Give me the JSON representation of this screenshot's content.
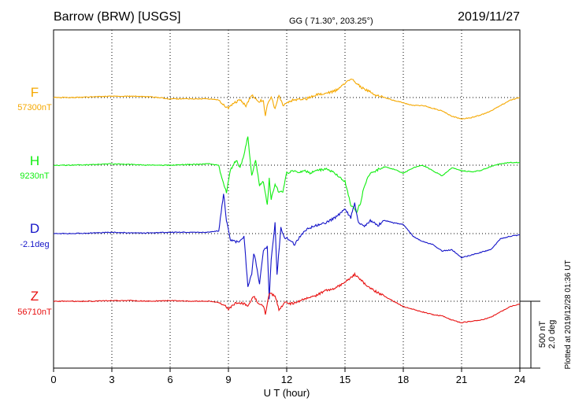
{
  "header": {
    "station": "Barrow (BRW)  [USGS]",
    "coords": "GG ( 71.30°, 203.25°)",
    "date": "2019/11/27"
  },
  "footer": {
    "plotted": "Plotted at 2019/12/28 01:36 UT"
  },
  "scale": {
    "nt": "500 nT",
    "deg": "2.0 deg"
  },
  "chart_data": {
    "type": "line",
    "title": "Barrow (BRW)  [USGS]",
    "xlabel": "U T (hour)",
    "ylabel": "",
    "xlim": [
      0,
      24
    ],
    "x_ticks": [
      "0",
      "3",
      "6",
      "9",
      "12",
      "15",
      "18",
      "21",
      "24"
    ],
    "grid": true,
    "series": [
      {
        "name": "F",
        "baseline": "57300nT",
        "color": "#f5a800",
        "x": [
          0,
          1,
          2,
          3,
          4,
          5,
          6,
          7,
          8,
          8.5,
          8.8,
          9,
          9.3,
          9.6,
          9.9,
          10.2,
          10.5,
          10.8,
          10.9,
          11,
          11.2,
          11.4,
          11.6,
          11.8,
          12,
          12.3,
          12.7,
          13,
          13.5,
          14,
          14.5,
          15,
          15.3,
          15.5,
          15.8,
          16.2,
          16.5,
          17,
          17.5,
          18,
          18.5,
          19,
          19.5,
          20,
          20.5,
          21,
          21.5,
          22,
          22.5,
          23,
          23.5,
          24
        ],
        "y": [
          0,
          0,
          5,
          10,
          10,
          5,
          -10,
          -10,
          -10,
          -20,
          -60,
          -80,
          -40,
          -20,
          -60,
          20,
          -30,
          -20,
          -140,
          -60,
          10,
          -90,
          20,
          -60,
          -40,
          -20,
          -10,
          -10,
          20,
          30,
          50,
          110,
          140,
          120,
          80,
          50,
          20,
          0,
          -20,
          -40,
          -60,
          -60,
          -80,
          -100,
          -140,
          -160,
          -150,
          -130,
          -100,
          -60,
          -20,
          0
        ]
      },
      {
        "name": "H",
        "baseline": "9230nT",
        "color": "#11ee11",
        "x": [
          0,
          1,
          2,
          3,
          4,
          5,
          6,
          7,
          8,
          8.5,
          8.7,
          8.9,
          9.1,
          9.4,
          9.6,
          9.8,
          10,
          10.2,
          10.4,
          10.6,
          10.8,
          11,
          11.1,
          11.2,
          11.4,
          11.6,
          11.8,
          12,
          12.3,
          12.6,
          12.9,
          13.2,
          13.5,
          14,
          14.5,
          15,
          15.3,
          15.6,
          15.8,
          16,
          16.3,
          16.6,
          17,
          17.5,
          18,
          18.5,
          19,
          19.5,
          20,
          20.5,
          21,
          21.5,
          22,
          22.5,
          23,
          23.5,
          24
        ],
        "y": [
          0,
          0,
          5,
          10,
          5,
          0,
          0,
          5,
          10,
          0,
          -120,
          -200,
          -40,
          40,
          -20,
          80,
          220,
          -80,
          40,
          -150,
          -120,
          -300,
          -100,
          -250,
          -150,
          -200,
          -200,
          -60,
          -40,
          -50,
          -40,
          -60,
          -40,
          -30,
          -60,
          -120,
          -300,
          -350,
          -280,
          -150,
          -60,
          -40,
          -10,
          -30,
          -60,
          -20,
          0,
          -40,
          -80,
          -20,
          -40,
          -50,
          -40,
          -10,
          10,
          20,
          20
        ]
      },
      {
        "name": "D",
        "baseline": "-2.1deg",
        "color": "#1414c8",
        "x": [
          0,
          1,
          2,
          3,
          4,
          5,
          6,
          7,
          8,
          8.5,
          8.75,
          8.9,
          9.1,
          9.3,
          9.6,
          9.8,
          10,
          10.2,
          10.3,
          10.4,
          10.6,
          10.8,
          11,
          11.1,
          11.2,
          11.4,
          11.5,
          11.7,
          11.9,
          12.1,
          12.4,
          12.7,
          13,
          13.5,
          14,
          14.5,
          15,
          15.3,
          15.5,
          15.7,
          16,
          16.3,
          16.7,
          17,
          17.5,
          18,
          18.5,
          19,
          19.5,
          20,
          20.5,
          21,
          21.5,
          22,
          22.5,
          23,
          23.5,
          24
        ],
        "y": [
          0,
          0,
          5,
          10,
          5,
          5,
          10,
          10,
          10,
          20,
          300,
          100,
          -50,
          -60,
          -60,
          -20,
          -400,
          -300,
          -150,
          -200,
          -380,
          -120,
          -100,
          -500,
          -200,
          80,
          -300,
          40,
          -30,
          -40,
          -80,
          -20,
          30,
          60,
          80,
          120,
          180,
          120,
          230,
          80,
          50,
          100,
          60,
          100,
          80,
          70,
          -20,
          -60,
          -80,
          -130,
          -120,
          -180,
          -160,
          -140,
          -120,
          -40,
          -20,
          -10
        ]
      },
      {
        "name": "Z",
        "baseline": "56710nT",
        "color": "#e81010",
        "x": [
          0,
          1,
          2,
          3,
          4,
          5,
          6,
          7,
          8,
          8.5,
          8.8,
          9,
          9.3,
          9.6,
          10,
          10.3,
          10.5,
          10.8,
          10.9,
          11.1,
          11.4,
          11.6,
          11.9,
          12.2,
          12.6,
          13,
          13.5,
          14,
          14.5,
          15,
          15.3,
          15.5,
          15.8,
          16.1,
          16.5,
          17,
          17.5,
          18,
          18.5,
          19,
          19.5,
          20,
          20.5,
          21,
          21.5,
          22,
          22.5,
          23,
          23.5,
          24
        ],
        "y": [
          0,
          0,
          0,
          5,
          5,
          0,
          5,
          0,
          0,
          -10,
          -30,
          -60,
          -20,
          -10,
          -30,
          40,
          -10,
          -30,
          -100,
          60,
          40,
          -60,
          -10,
          -20,
          0,
          20,
          40,
          80,
          100,
          140,
          180,
          200,
          160,
          120,
          80,
          40,
          0,
          -40,
          -60,
          -80,
          -100,
          -110,
          -140,
          -160,
          -150,
          -140,
          -120,
          -80,
          -40,
          -20
        ]
      }
    ]
  }
}
